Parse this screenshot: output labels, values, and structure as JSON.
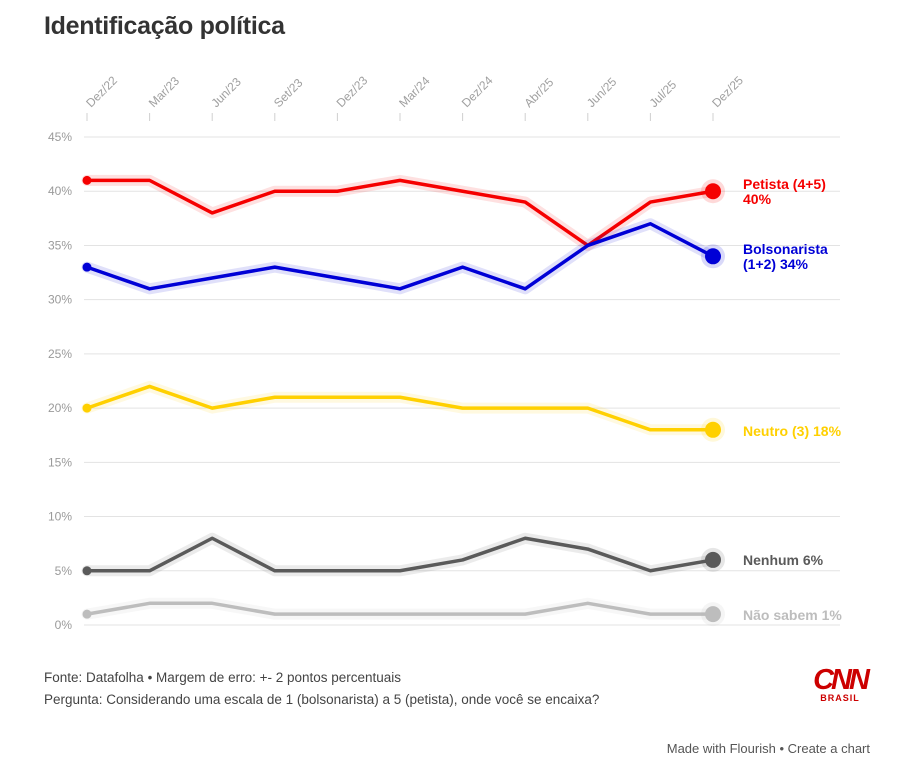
{
  "title": "Identificação política",
  "chart_data": {
    "type": "line",
    "categories": [
      "Dez/22",
      "Mar/23",
      "Jun/23",
      "Set/23",
      "Dez/23",
      "Mar/24",
      "Dez/24",
      "Abr/25",
      "Jun/25",
      "Jul/25",
      "Dez/25"
    ],
    "y_ticks": [
      "0%",
      "5%",
      "10%",
      "15%",
      "20%",
      "25%",
      "30%",
      "35%",
      "40%",
      "45%"
    ],
    "ylim": [
      0,
      45
    ],
    "y_unit": "%",
    "grid": true,
    "series": [
      {
        "name": "Petista (4+5)",
        "label_lines": [
          "Petista (4+5)",
          "40%"
        ],
        "color": "#f50000",
        "values": [
          41,
          41,
          38,
          40,
          40,
          41,
          40,
          39,
          35,
          39,
          40
        ]
      },
      {
        "name": "Bolsonarista (1+2)",
        "label_lines": [
          "Bolsonarista",
          "(1+2) 34%"
        ],
        "color": "#0000d6",
        "values": [
          33,
          31,
          32,
          33,
          32,
          31,
          33,
          31,
          35,
          37,
          34
        ]
      },
      {
        "name": "Neutro (3)",
        "label_lines": [
          "Neutro (3) 18%"
        ],
        "color": "#ffd000",
        "values": [
          20,
          22,
          20,
          21,
          21,
          21,
          20,
          20,
          20,
          18,
          18
        ]
      },
      {
        "name": "Nenhum",
        "label_lines": [
          "Nenhum 6%"
        ],
        "color": "#5a5a5a",
        "values": [
          5,
          5,
          8,
          5,
          5,
          5,
          6,
          8,
          7,
          5,
          6
        ]
      },
      {
        "name": "Não sabem",
        "label_lines": [
          "Não sabem 1%"
        ],
        "color": "#bdbdbd",
        "values": [
          1,
          2,
          2,
          1,
          1,
          1,
          1,
          1,
          2,
          1,
          1
        ]
      }
    ]
  },
  "footer": {
    "source": "Fonte: Datafolha • Margem de erro: +- 2 pontos percentuais",
    "question": "Pergunta: Considerando uma escala de 1 (bolsonarista) a 5 (petista), onde você se encaixa?"
  },
  "logo": {
    "mark": "CNN",
    "sub": "BRASIL"
  },
  "credit": {
    "made_with": "Made with Flourish",
    "sep": " • ",
    "create": "Create a chart"
  }
}
